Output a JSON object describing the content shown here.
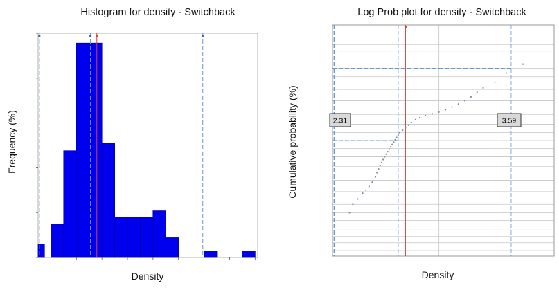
{
  "histogram": {
    "title": "Histogram for density - Switchback",
    "xlabel": "Density",
    "ylabel": "Frequency (%)"
  },
  "probplot": {
    "title": "Log Prob plot for density - Switchback",
    "xlabel": "Density",
    "ylabel": "Cumulative probability (%)",
    "callout_low": "2.31",
    "callout_high": "3.59"
  },
  "colors": {
    "bar_fill": "#0000ee",
    "bar_stroke": "#0000aa",
    "limit_line": "#6a96d4",
    "mean_line": "#d9413a",
    "mean_marker": "#d9413a",
    "limit_marker": "#3f5fd0",
    "prob_points": "#7f8ea8",
    "grid": "#c6c6c6"
  },
  "chart_data": [
    {
      "type": "bar",
      "title": "Histogram for density - Switchback",
      "xlabel": "Density",
      "ylabel": "Frequency (%)",
      "xlim": [
        2.3,
        4.02
      ],
      "ylim": [
        0,
        25
      ],
      "xticks": [
        "2.4",
        "2.6",
        "2.8",
        "3.0",
        "3.2",
        "3.4",
        "3.6",
        "3.8",
        "4.0"
      ],
      "yticks": [
        "0",
        "5",
        "10",
        "15",
        "20",
        "25"
      ],
      "bins": [
        {
          "x0": 2.3,
          "x1": 2.35,
          "value": 1.5
        },
        {
          "x0": 2.4,
          "x1": 2.5,
          "value": 3.7
        },
        {
          "x0": 2.5,
          "x1": 2.6,
          "value": 11.9
        },
        {
          "x0": 2.6,
          "x1": 2.7,
          "value": 23.9
        },
        {
          "x0": 2.7,
          "x1": 2.8,
          "value": 23.9
        },
        {
          "x0": 2.8,
          "x1": 2.9,
          "value": 12.7
        },
        {
          "x0": 2.9,
          "x1": 3.0,
          "value": 4.5
        },
        {
          "x0": 3.0,
          "x1": 3.1,
          "value": 4.5
        },
        {
          "x0": 3.1,
          "x1": 3.2,
          "value": 4.5
        },
        {
          "x0": 3.2,
          "x1": 3.3,
          "value": 5.2
        },
        {
          "x0": 3.3,
          "x1": 3.4,
          "value": 2.2
        },
        {
          "x0": 3.6,
          "x1": 3.7,
          "value": 0.7
        },
        {
          "x0": 3.9,
          "x1": 4.0,
          "value": 0.7
        }
      ],
      "vlines": [
        {
          "x": 2.31,
          "kind": "limit"
        },
        {
          "x": 2.71,
          "kind": "limit"
        },
        {
          "x": 2.76,
          "kind": "mean"
        },
        {
          "x": 3.59,
          "kind": "limit"
        }
      ],
      "grid": false
    },
    {
      "type": "scatter",
      "title": "Log Prob plot for density - Switchback",
      "xlabel": "Density",
      "ylabel": "Cumulative probability (%)",
      "xscale": "log",
      "xlim": [
        2.3,
        4.0
      ],
      "xticks": [
        "3",
        "4"
      ],
      "yscale": "probability",
      "yticks": [
        "0.01",
        "0.02",
        "0.05",
        "0.1",
        "0.2",
        "0.5",
        "1",
        "2",
        "5",
        "10",
        "20",
        "30",
        "40",
        "50",
        "60",
        "70",
        "80",
        "90",
        "95",
        "98",
        "99",
        "99.8",
        "99.9",
        "99.99"
      ],
      "grid": true,
      "points": [
        {
          "x": 2.4,
          "y": 1.0
        },
        {
          "x": 2.42,
          "y": 2.0
        },
        {
          "x": 2.45,
          "y": 3.0
        },
        {
          "x": 2.48,
          "y": 4.5
        },
        {
          "x": 2.5,
          "y": 5.5
        },
        {
          "x": 2.52,
          "y": 7.0
        },
        {
          "x": 2.54,
          "y": 9.0
        },
        {
          "x": 2.56,
          "y": 12.0
        },
        {
          "x": 2.57,
          "y": 15.0
        },
        {
          "x": 2.58,
          "y": 18.0
        },
        {
          "x": 2.59,
          "y": 21.0
        },
        {
          "x": 2.6,
          "y": 24.0
        },
        {
          "x": 2.61,
          "y": 27.0
        },
        {
          "x": 2.62,
          "y": 30.0
        },
        {
          "x": 2.63,
          "y": 33.0
        },
        {
          "x": 2.64,
          "y": 36.0
        },
        {
          "x": 2.65,
          "y": 39.0
        },
        {
          "x": 2.66,
          "y": 42.0
        },
        {
          "x": 2.67,
          "y": 45.0
        },
        {
          "x": 2.68,
          "y": 48.0
        },
        {
          "x": 2.69,
          "y": 51.0
        },
        {
          "x": 2.7,
          "y": 54.0
        },
        {
          "x": 2.71,
          "y": 57.0
        },
        {
          "x": 2.72,
          "y": 60.0
        },
        {
          "x": 2.74,
          "y": 63.0
        },
        {
          "x": 2.76,
          "y": 66.0
        },
        {
          "x": 2.78,
          "y": 69.0
        },
        {
          "x": 2.8,
          "y": 72.0
        },
        {
          "x": 2.83,
          "y": 75.0
        },
        {
          "x": 2.86,
          "y": 77.0
        },
        {
          "x": 2.9,
          "y": 79.0
        },
        {
          "x": 2.95,
          "y": 80.5
        },
        {
          "x": 3.0,
          "y": 82.0
        },
        {
          "x": 3.05,
          "y": 84.0
        },
        {
          "x": 3.1,
          "y": 86.0
        },
        {
          "x": 3.15,
          "y": 88.0
        },
        {
          "x": 3.2,
          "y": 90.0
        },
        {
          "x": 3.25,
          "y": 92.0
        },
        {
          "x": 3.3,
          "y": 94.0
        },
        {
          "x": 3.35,
          "y": 95.5
        },
        {
          "x": 3.45,
          "y": 97.0
        },
        {
          "x": 3.55,
          "y": 98.5
        },
        {
          "x": 3.7,
          "y": 99.3
        }
      ],
      "vlines": [
        {
          "x": 2.31,
          "kind": "limit"
        },
        {
          "x": 2.71,
          "kind": "limit"
        },
        {
          "x": 2.76,
          "kind": "mean"
        },
        {
          "x": 3.59,
          "kind": "limit"
        }
      ],
      "hlines": [
        {
          "y": 50.0,
          "x_to": 2.71
        },
        {
          "y": 99.0,
          "x_to": 3.59
        }
      ]
    }
  ]
}
